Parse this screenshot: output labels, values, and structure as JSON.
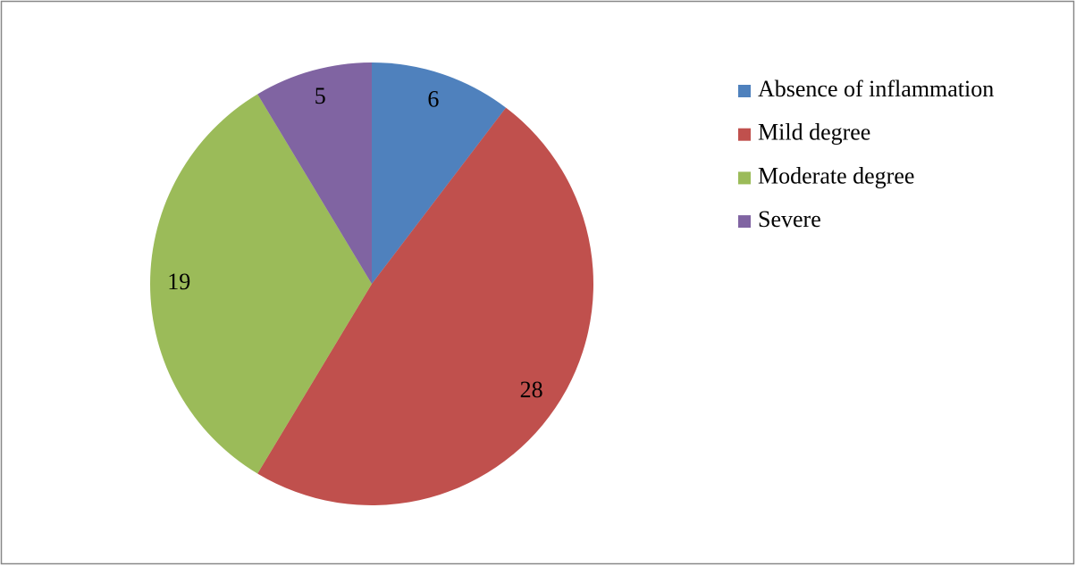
{
  "chart_data": {
    "type": "pie",
    "categories": [
      "Absence of inflammation",
      "Mild degree",
      "Moderate degree",
      "Severe"
    ],
    "values": [
      6,
      28,
      19,
      5
    ],
    "colors": [
      "#4f81bd",
      "#c0504d",
      "#9bbb59",
      "#8064a2"
    ],
    "legend": "right"
  }
}
